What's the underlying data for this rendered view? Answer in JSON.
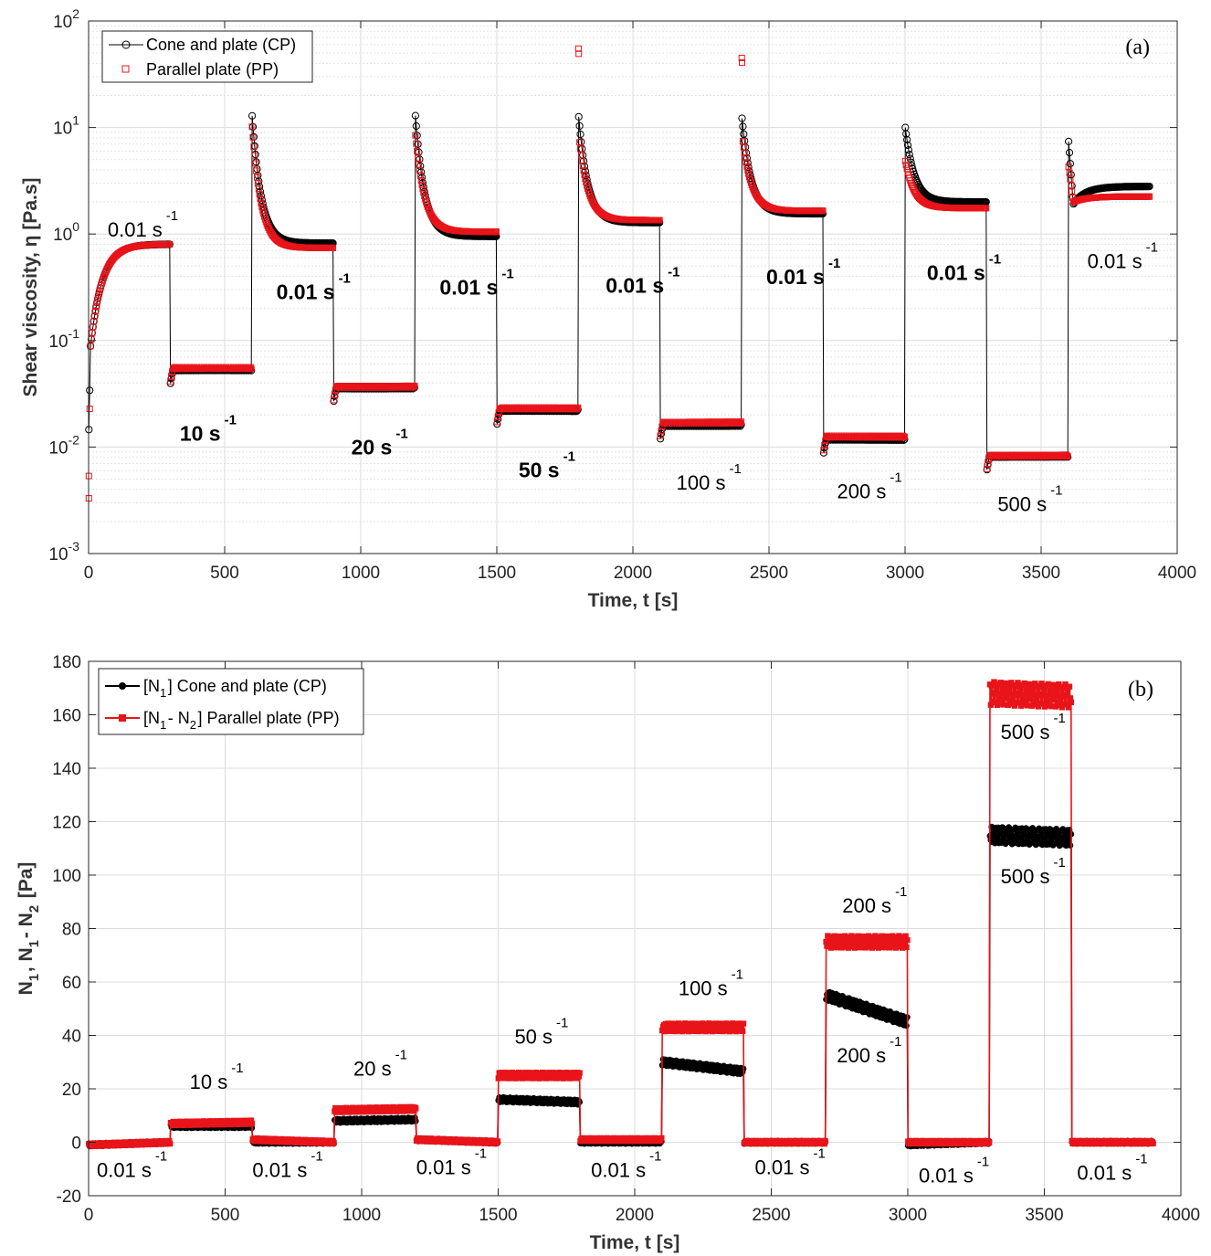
{
  "chart_data": [
    {
      "type": "scatter",
      "panel_label": "(a)",
      "xlabel": "Time, t [s]",
      "ylabel": "Shear viscosity, η [Pa.s]",
      "xlim": [
        0,
        4000
      ],
      "ylim": [
        0.001,
        100
      ],
      "yscale": "log",
      "xticks": [
        "0",
        "500",
        "1000",
        "1500",
        "2000",
        "2500",
        "3000",
        "3500",
        "4000"
      ],
      "yticks": [
        {
          "base": "10",
          "exp": "-3"
        },
        {
          "base": "10",
          "exp": "-2"
        },
        {
          "base": "10",
          "exp": "-1"
        },
        {
          "base": "10",
          "exp": "0"
        },
        {
          "base": "10",
          "exp": "1"
        },
        {
          "base": "10",
          "exp": "2"
        }
      ],
      "grid": true,
      "legend_position": "top-left",
      "series": [
        {
          "name": "Cone and plate (CP)",
          "color": "#000000",
          "marker": "open-circle",
          "segments": [
            {
              "t0": 0,
              "t1": 300,
              "kind": "rise",
              "y0": 0.011,
              "y1": 0.8
            },
            {
              "t0": 300,
              "t1": 600,
              "kind": "flat",
              "y": 0.053
            },
            {
              "t0": 600,
              "t1": 900,
              "kind": "decay",
              "y0": 14,
              "y1": 0.82
            },
            {
              "t0": 900,
              "t1": 1200,
              "kind": "flat",
              "y": 0.036
            },
            {
              "t0": 1200,
              "t1": 1500,
              "kind": "decay",
              "y0": 14,
              "y1": 0.95
            },
            {
              "t0": 1500,
              "t1": 1800,
              "kind": "flat",
              "y": 0.022
            },
            {
              "t0": 1800,
              "t1": 2100,
              "kind": "decay",
              "y0": 13.5,
              "y1": 1.28
            },
            {
              "t0": 2100,
              "t1": 2400,
              "kind": "flat",
              "y": 0.016
            },
            {
              "t0": 2400,
              "t1": 2700,
              "kind": "decay",
              "y0": 13,
              "y1": 1.55
            },
            {
              "t0": 2700,
              "t1": 3000,
              "kind": "flat",
              "y": 0.0118
            },
            {
              "t0": 3000,
              "t1": 3300,
              "kind": "decay",
              "y0": 10.5,
              "y1": 2.0
            },
            {
              "t0": 3300,
              "t1": 3600,
              "kind": "flat",
              "y": 0.0082
            },
            {
              "t0": 3600,
              "t1": 3900,
              "kind": "recover",
              "y0": 8,
              "ymin": 1.9,
              "y1": 2.8
            }
          ]
        },
        {
          "name": "Parallel plate (PP)",
          "color": "#e8141a",
          "marker": "open-square",
          "segments": [
            {
              "t0": 0,
              "t1": 300,
              "kind": "rise",
              "y0": 0.0033,
              "y1": 0.8
            },
            {
              "t0": 300,
              "t1": 600,
              "kind": "flat",
              "y": 0.055
            },
            {
              "t0": 600,
              "t1": 900,
              "kind": "decay",
              "y0": 11,
              "y1": 0.74
            },
            {
              "t0": 900,
              "t1": 1200,
              "kind": "flat",
              "y": 0.037
            },
            {
              "t0": 1200,
              "t1": 1500,
              "kind": "decay",
              "y0": 9,
              "y1": 1.05
            },
            {
              "t0": 1500,
              "t1": 1800,
              "kind": "flat",
              "y": 0.023
            },
            {
              "t0": 1800,
              "t1": 2100,
              "kind": "decay",
              "y0": 55,
              "y1": 1.35
            },
            {
              "t0": 2100,
              "t1": 2400,
              "kind": "flat",
              "y": 0.017
            },
            {
              "t0": 2400,
              "t1": 2700,
              "kind": "decay",
              "y0": 45,
              "y1": 1.65
            },
            {
              "t0": 2700,
              "t1": 3000,
              "kind": "flat",
              "y": 0.0125
            },
            {
              "t0": 3000,
              "t1": 3300,
              "kind": "decay",
              "y0": 5,
              "y1": 1.75
            },
            {
              "t0": 3300,
              "t1": 3600,
              "kind": "flat",
              "y": 0.0083
            },
            {
              "t0": 3600,
              "t1": 3900,
              "kind": "recover",
              "y0": 4.5,
              "ymin": 2.0,
              "y1": 2.25
            }
          ]
        }
      ],
      "annotations": [
        {
          "text": "0.01 s",
          "sup": "-1",
          "x": 70,
          "y": 0.95,
          "style": "normal"
        },
        {
          "text": "0.01 s",
          "sup": "-1",
          "x": 690,
          "y": 0.245,
          "style": "bold"
        },
        {
          "text": "0.01 s",
          "sup": "-1",
          "x": 1290,
          "y": 0.27,
          "style": "bold"
        },
        {
          "text": "0.01 s",
          "sup": "-1",
          "x": 1900,
          "y": 0.28,
          "style": "bold"
        },
        {
          "text": "0.01 s",
          "sup": "-1",
          "x": 2490,
          "y": 0.34,
          "style": "bold"
        },
        {
          "text": "0.01 s",
          "sup": "-1",
          "x": 3080,
          "y": 0.37,
          "style": "bold"
        },
        {
          "text": "0.01 s",
          "sup": "-1",
          "x": 3670,
          "y": 0.48,
          "style": "normal"
        },
        {
          "text": "10 s",
          "sup": "-1",
          "x": 335,
          "y": 0.0115,
          "style": "bold"
        },
        {
          "text": "20 s",
          "sup": "-1",
          "x": 965,
          "y": 0.0085,
          "style": "bold"
        },
        {
          "text": "50 s",
          "sup": "-1",
          "x": 1580,
          "y": 0.0052,
          "style": "bold"
        },
        {
          "text": "100 s",
          "sup": "-1",
          "x": 2160,
          "y": 0.004,
          "style": "normal"
        },
        {
          "text": "200 s",
          "sup": "-1",
          "x": 2750,
          "y": 0.0033,
          "style": "normal"
        },
        {
          "text": "500 s",
          "sup": "-1",
          "x": 3340,
          "y": 0.0025,
          "style": "normal"
        }
      ]
    },
    {
      "type": "line",
      "panel_label": "(b)",
      "xlabel": "Time, t [s]",
      "ylabel_parts": [
        {
          "t": "N",
          "sub": "1"
        },
        {
          "t": ", N",
          "sub": "1"
        },
        {
          "t": "- N",
          "sub": "2"
        },
        {
          "t": " [Pa]"
        }
      ],
      "xlim": [
        0,
        4000
      ],
      "ylim": [
        -20,
        180
      ],
      "xticks": [
        "0",
        "500",
        "1000",
        "1500",
        "2000",
        "2500",
        "3000",
        "3500",
        "4000"
      ],
      "yticks": [
        "-20",
        "0",
        "20",
        "40",
        "60",
        "80",
        "100",
        "120",
        "140",
        "160",
        "180"
      ],
      "grid": true,
      "legend_position": "top-left",
      "series": [
        {
          "name_parts": [
            {
              "t": "[N",
              "sub": "1"
            },
            {
              "t": "] Cone and plate (CP)"
            }
          ],
          "color": "#000000",
          "marker": "filled-circle",
          "levels": [
            {
              "t0": 0,
              "t1": 300,
              "y0": -1,
              "y1": 0
            },
            {
              "t0": 300,
              "t1": 600,
              "y0": 6,
              "y1": 6
            },
            {
              "t0": 600,
              "t1": 900,
              "y0": 0,
              "y1": 0
            },
            {
              "t0": 900,
              "t1": 1200,
              "y0": 8,
              "y1": 8.5
            },
            {
              "t0": 1200,
              "t1": 1500,
              "y0": 1,
              "y1": 0
            },
            {
              "t0": 1500,
              "t1": 1800,
              "y0": 16,
              "y1": 15
            },
            {
              "t0": 1800,
              "t1": 2100,
              "y0": 0,
              "y1": 0
            },
            {
              "t0": 2100,
              "t1": 2400,
              "y0": 30,
              "y1": 26.5
            },
            {
              "t0": 2400,
              "t1": 2700,
              "y0": 0,
              "y1": 0
            },
            {
              "t0": 2700,
              "t1": 3000,
              "y0": 55,
              "y1": 45
            },
            {
              "t0": 3000,
              "t1": 3300,
              "y0": -1,
              "y1": 0
            },
            {
              "t0": 3300,
              "t1": 3600,
              "y0": 115,
              "y1": 114
            },
            {
              "t0": 3600,
              "t1": 3900,
              "y0": 0,
              "y1": 0
            }
          ]
        },
        {
          "name_parts": [
            {
              "t": "[N",
              "sub": "1"
            },
            {
              "t": "- N",
              "sub": "2"
            },
            {
              "t": "] Parallel plate (PP)"
            }
          ],
          "color": "#e8141a",
          "marker": "filled-square",
          "levels": [
            {
              "t0": 0,
              "t1": 300,
              "y0": -1,
              "y1": 0
            },
            {
              "t0": 300,
              "t1": 600,
              "y0": 7,
              "y1": 7.5
            },
            {
              "t0": 600,
              "t1": 900,
              "y0": 1,
              "y1": 0
            },
            {
              "t0": 900,
              "t1": 1200,
              "y0": 12,
              "y1": 12.5
            },
            {
              "t0": 1200,
              "t1": 1500,
              "y0": 1,
              "y1": 0
            },
            {
              "t0": 1500,
              "t1": 1800,
              "y0": 25,
              "y1": 25
            },
            {
              "t0": 1800,
              "t1": 2100,
              "y0": 1,
              "y1": 1
            },
            {
              "t0": 2100,
              "t1": 2400,
              "y0": 43,
              "y1": 43
            },
            {
              "t0": 2400,
              "t1": 2700,
              "y0": 0,
              "y1": 0
            },
            {
              "t0": 2700,
              "t1": 3000,
              "y0": 75,
              "y1": 75
            },
            {
              "t0": 3000,
              "t1": 3300,
              "y0": 0,
              "y1": 0
            },
            {
              "t0": 3300,
              "t1": 3600,
              "y0": 168,
              "y1": 167
            },
            {
              "t0": 3600,
              "t1": 3900,
              "y0": 0,
              "y1": 0
            }
          ]
        }
      ],
      "annotations": [
        {
          "text": "10 s",
          "sup": "-1",
          "x": 370,
          "y": 20
        },
        {
          "text": "20 s",
          "sup": "-1",
          "x": 970,
          "y": 25
        },
        {
          "text": "50 s",
          "sup": "-1",
          "x": 1560,
          "y": 37
        },
        {
          "text": "100 s",
          "sup": "-1",
          "x": 2160,
          "y": 55
        },
        {
          "text": "200 s",
          "sup": "-1",
          "x": 2760,
          "y": 86
        },
        {
          "text": "200 s",
          "sup": "-1",
          "x": 2740,
          "y": 30
        },
        {
          "text": "500 s",
          "sup": "-1",
          "x": 3340,
          "y": 151
        },
        {
          "text": "500 s",
          "sup": "-1",
          "x": 3340,
          "y": 97
        },
        {
          "text": "0.01 s",
          "sup": "-1",
          "x": 30,
          "y": -13
        },
        {
          "text": "0.01 s",
          "sup": "-1",
          "x": 600,
          "y": -13
        },
        {
          "text": "0.01 s",
          "sup": "-1",
          "x": 1200,
          "y": -12
        },
        {
          "text": "0.01 s",
          "sup": "-1",
          "x": 1840,
          "y": -13
        },
        {
          "text": "0.01 s",
          "sup": "-1",
          "x": 2440,
          "y": -12
        },
        {
          "text": "0.01 s",
          "sup": "-1",
          "x": 3040,
          "y": -15
        },
        {
          "text": "0.01 s",
          "sup": "-1",
          "x": 3620,
          "y": -14
        }
      ]
    }
  ]
}
